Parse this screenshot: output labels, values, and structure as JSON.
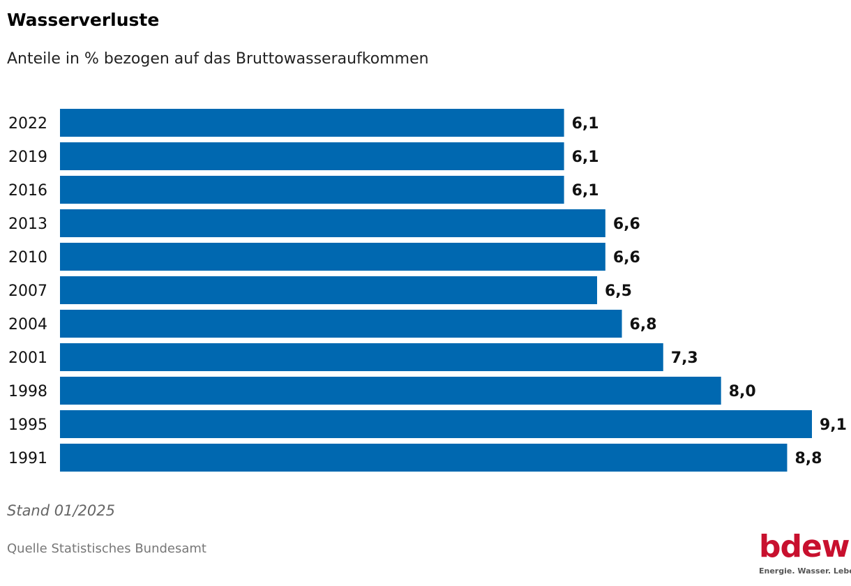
{
  "chart_data": {
    "type": "bar",
    "orientation": "horizontal",
    "title": "Wasserverluste",
    "subtitle": "Anteile in % bezogen auf das Bruttowasseraufkommen",
    "categories": [
      "2022",
      "2019",
      "2016",
      "2013",
      "2010",
      "2007",
      "2004",
      "2001",
      "1998",
      "1995",
      "1991"
    ],
    "values": [
      6.1,
      6.1,
      6.1,
      6.6,
      6.6,
      6.5,
      6.8,
      7.3,
      8.0,
      9.1,
      8.8
    ],
    "value_labels": [
      "6,1",
      "6,1",
      "6,1",
      "6,6",
      "6,6",
      "6,5",
      "6,8",
      "7,3",
      "8,0",
      "9,1",
      "8,8"
    ],
    "xlim": [
      0,
      9.1
    ],
    "grid": false,
    "bar_color": "#0068b0"
  },
  "footer": {
    "note": "Stand 01/2025",
    "source": "Quelle Statistisches Bundesamt"
  },
  "logo": {
    "word": "bdew",
    "tagline": "Energie. Wasser. Leben.",
    "color": "#c8102e"
  }
}
